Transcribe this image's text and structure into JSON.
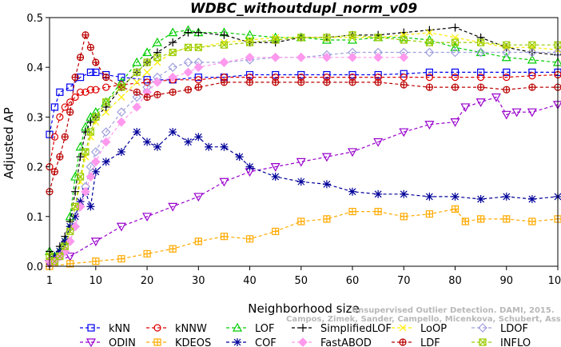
{
  "chart_data": {
    "type": "line",
    "title": "WDBC_withoutdupl_norm_v09",
    "xlabel": "Neighborhood size",
    "ylabel": "Adjusted AP",
    "xlim": [
      1,
      100
    ],
    "ylim": [
      0,
      0.5
    ],
    "xticks": [
      1,
      10,
      20,
      30,
      40,
      50,
      60,
      70,
      80,
      90,
      100
    ],
    "yticks": [
      0.0,
      0.1,
      0.2,
      0.3,
      0.4,
      0.5
    ],
    "grid": false,
    "legend_position": "bottom",
    "watermark": "Unsupervised Outlier Detection. DAMI, 2015. Campos, Zimek, Sander, Campello, Micenkova, Schubert, Assent, Houle",
    "series": [
      {
        "name": "kNN",
        "color": "#0000ee",
        "marker": "square",
        "x": [
          1,
          2,
          3,
          5,
          7,
          9,
          10,
          12,
          15,
          20,
          25,
          30,
          35,
          40,
          45,
          50,
          55,
          60,
          65,
          70,
          75,
          80,
          85,
          90,
          95,
          100
        ],
        "y": [
          0.265,
          0.32,
          0.35,
          0.36,
          0.38,
          0.39,
          0.39,
          0.385,
          0.38,
          0.375,
          0.375,
          0.38,
          0.38,
          0.385,
          0.385,
          0.385,
          0.385,
          0.385,
          0.385,
          0.387,
          0.39,
          0.39,
          0.39,
          0.39,
          0.39,
          0.39
        ]
      },
      {
        "name": "kNNW",
        "color": "#dd0000",
        "marker": "circle",
        "x": [
          1,
          2,
          3,
          4,
          5,
          6,
          7,
          8,
          9,
          10,
          12,
          15,
          20,
          25,
          30,
          35,
          40,
          45,
          50,
          55,
          60,
          65,
          70,
          75,
          80,
          85,
          90,
          95,
          100
        ],
        "y": [
          0.2,
          0.26,
          0.3,
          0.32,
          0.33,
          0.34,
          0.35,
          0.35,
          0.355,
          0.355,
          0.36,
          0.365,
          0.37,
          0.375,
          0.375,
          0.38,
          0.38,
          0.38,
          0.38,
          0.38,
          0.38,
          0.38,
          0.38,
          0.38,
          0.38,
          0.38,
          0.38,
          0.383,
          0.385
        ]
      },
      {
        "name": "LOF",
        "color": "#00cc00",
        "marker": "triangle-up",
        "x": [
          1,
          2,
          3,
          4,
          5,
          6,
          7,
          8,
          9,
          10,
          12,
          15,
          18,
          20,
          22,
          25,
          28,
          30,
          35,
          40,
          45,
          50,
          55,
          60,
          65,
          70,
          75,
          80,
          85,
          90,
          95,
          100
        ],
        "y": [
          0.03,
          0.02,
          0.03,
          0.05,
          0.1,
          0.18,
          0.24,
          0.28,
          0.3,
          0.31,
          0.33,
          0.37,
          0.41,
          0.43,
          0.45,
          0.47,
          0.475,
          0.47,
          0.47,
          0.465,
          0.46,
          0.46,
          0.455,
          0.455,
          0.46,
          0.46,
          0.455,
          0.44,
          0.43,
          0.42,
          0.415,
          0.41
        ]
      },
      {
        "name": "SimplifiedLOF",
        "color": "#000000",
        "marker": "plus",
        "x": [
          1,
          2,
          3,
          4,
          5,
          6,
          7,
          8,
          9,
          10,
          12,
          15,
          18,
          20,
          22,
          25,
          28,
          30,
          35,
          40,
          45,
          50,
          55,
          60,
          65,
          70,
          75,
          80,
          85,
          90,
          95,
          100
        ],
        "y": [
          0.03,
          0.02,
          0.04,
          0.06,
          0.09,
          0.15,
          0.22,
          0.27,
          0.29,
          0.3,
          0.32,
          0.36,
          0.39,
          0.41,
          0.43,
          0.45,
          0.47,
          0.47,
          0.465,
          0.45,
          0.45,
          0.46,
          0.46,
          0.465,
          0.465,
          0.47,
          0.475,
          0.48,
          0.46,
          0.44,
          0.43,
          0.425
        ]
      },
      {
        "name": "LoOP",
        "color": "#ffee00",
        "marker": "x",
        "x": [
          1,
          2,
          3,
          4,
          5,
          6,
          7,
          8,
          9,
          10,
          12,
          15,
          18,
          20,
          22,
          25,
          28,
          30,
          35,
          40,
          45,
          50,
          55,
          60,
          65,
          70,
          75,
          80,
          85,
          90,
          95,
          100
        ],
        "y": [
          0.02,
          0.01,
          0.02,
          0.04,
          0.07,
          0.12,
          0.17,
          0.22,
          0.26,
          0.29,
          0.31,
          0.34,
          0.37,
          0.39,
          0.41,
          0.43,
          0.44,
          0.44,
          0.45,
          0.455,
          0.46,
          0.46,
          0.46,
          0.46,
          0.46,
          0.465,
          0.47,
          0.46,
          0.45,
          0.44,
          0.44,
          0.435
        ]
      },
      {
        "name": "LDOF",
        "color": "#a0a0dd",
        "marker": "diamond",
        "x": [
          1,
          2,
          3,
          4,
          5,
          6,
          7,
          8,
          9,
          10,
          12,
          15,
          18,
          20,
          22,
          25,
          28,
          30,
          35,
          40,
          45,
          50,
          55,
          60,
          65,
          70,
          75,
          80,
          85,
          90,
          95,
          100
        ],
        "y": [
          0.01,
          0.01,
          0.02,
          0.03,
          0.05,
          0.08,
          0.12,
          0.16,
          0.2,
          0.23,
          0.27,
          0.31,
          0.34,
          0.36,
          0.38,
          0.4,
          0.41,
          0.41,
          0.41,
          0.415,
          0.42,
          0.42,
          0.425,
          0.43,
          0.43,
          0.43,
          0.43,
          0.43,
          0.43,
          0.43,
          0.43,
          0.43
        ]
      },
      {
        "name": "ODIN",
        "color": "#9900cc",
        "marker": "triangle-down",
        "x": [
          1,
          5,
          10,
          15,
          20,
          25,
          30,
          35,
          40,
          45,
          50,
          55,
          60,
          65,
          70,
          75,
          80,
          82,
          85,
          88,
          90,
          92,
          95,
          100
        ],
        "y": [
          0.005,
          0.02,
          0.05,
          0.08,
          0.1,
          0.12,
          0.14,
          0.17,
          0.19,
          0.2,
          0.21,
          0.22,
          0.23,
          0.25,
          0.27,
          0.285,
          0.29,
          0.32,
          0.33,
          0.34,
          0.305,
          0.31,
          0.31,
          0.325
        ]
      },
      {
        "name": "KDEOS",
        "color": "#ffaa00",
        "marker": "square-cross",
        "x": [
          1,
          5,
          10,
          15,
          20,
          25,
          30,
          35,
          40,
          45,
          50,
          55,
          60,
          65,
          70,
          75,
          80,
          82,
          85,
          90,
          95,
          100
        ],
        "y": [
          0.0,
          0.005,
          0.01,
          0.015,
          0.025,
          0.035,
          0.05,
          0.06,
          0.055,
          0.07,
          0.09,
          0.095,
          0.11,
          0.11,
          0.1,
          0.105,
          0.115,
          0.09,
          0.095,
          0.095,
          0.09,
          0.095
        ]
      },
      {
        "name": "COF",
        "color": "#000099",
        "marker": "asterisk",
        "x": [
          1,
          2,
          3,
          4,
          5,
          6,
          7,
          8,
          9,
          10,
          12,
          15,
          18,
          20,
          22,
          25,
          28,
          30,
          32,
          35,
          38,
          40,
          45,
          50,
          55,
          60,
          65,
          70,
          75,
          80,
          85,
          90,
          95,
          100
        ],
        "y": [
          0.01,
          0.02,
          0.03,
          0.05,
          0.08,
          0.1,
          0.13,
          0.15,
          0.12,
          0.19,
          0.21,
          0.23,
          0.27,
          0.25,
          0.24,
          0.27,
          0.25,
          0.26,
          0.24,
          0.24,
          0.22,
          0.2,
          0.18,
          0.17,
          0.165,
          0.15,
          0.145,
          0.145,
          0.14,
          0.14,
          0.135,
          0.14,
          0.135,
          0.14
        ]
      },
      {
        "name": "FastABOD",
        "color": "#ff99ee",
        "marker": "diamond-filled",
        "x": [
          1,
          2,
          3,
          4,
          5,
          6,
          7,
          8,
          9,
          10,
          12,
          15,
          18,
          20,
          22,
          25,
          28,
          30,
          35,
          40,
          45,
          50,
          55,
          60,
          65,
          70
        ],
        "y": [
          0.01,
          0.01,
          0.02,
          0.03,
          0.05,
          0.08,
          0.12,
          0.15,
          0.18,
          0.21,
          0.25,
          0.29,
          0.32,
          0.35,
          0.37,
          0.38,
          0.39,
          0.4,
          0.41,
          0.42,
          0.42,
          0.42,
          0.42,
          0.42,
          0.42,
          0.42
        ]
      },
      {
        "name": "LDF",
        "color": "#bb0000",
        "marker": "circle-plus",
        "x": [
          1,
          2,
          3,
          4,
          5,
          6,
          7,
          8,
          9,
          10,
          12,
          15,
          18,
          20,
          22,
          25,
          28,
          30,
          35,
          40,
          45,
          50,
          55,
          60,
          65,
          70,
          75,
          80,
          85,
          90,
          95,
          100
        ],
        "y": [
          0.15,
          0.19,
          0.22,
          0.26,
          0.31,
          0.38,
          0.42,
          0.465,
          0.44,
          0.41,
          0.38,
          0.36,
          0.35,
          0.34,
          0.345,
          0.35,
          0.355,
          0.36,
          0.37,
          0.37,
          0.37,
          0.37,
          0.37,
          0.37,
          0.37,
          0.365,
          0.36,
          0.36,
          0.36,
          0.355,
          0.36,
          0.36
        ]
      },
      {
        "name": "INFLO",
        "color": "#99cc00",
        "marker": "square-x",
        "x": [
          1,
          2,
          3,
          4,
          5,
          6,
          7,
          8,
          9,
          10,
          12,
          15,
          18,
          20,
          22,
          25,
          28,
          30,
          35,
          40,
          45,
          50,
          55,
          60,
          65,
          70,
          75,
          80,
          85,
          90,
          95,
          100
        ],
        "y": [
          0.02,
          0.01,
          0.02,
          0.04,
          0.07,
          0.12,
          0.18,
          0.23,
          0.27,
          0.3,
          0.33,
          0.36,
          0.39,
          0.41,
          0.42,
          0.43,
          0.44,
          0.44,
          0.445,
          0.45,
          0.455,
          0.46,
          0.46,
          0.465,
          0.46,
          0.455,
          0.45,
          0.45,
          0.45,
          0.445,
          0.445,
          0.445
        ]
      }
    ]
  }
}
